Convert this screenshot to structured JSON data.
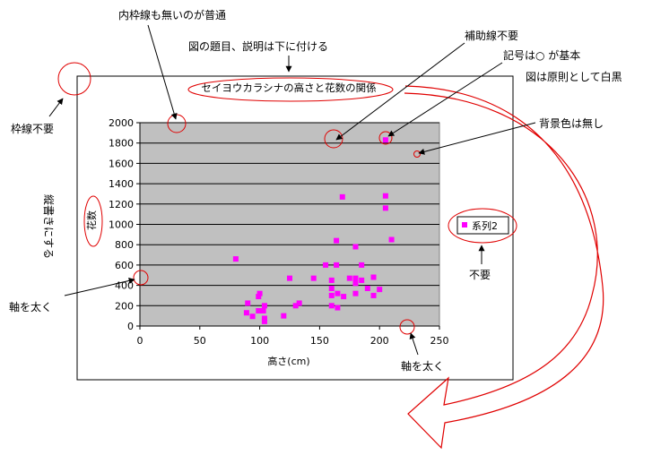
{
  "chart_data": {
    "type": "scatter",
    "title": "セイヨウカラシナの高さと花数の関係",
    "xlabel": "高さ(cm)",
    "ylabel": "花数",
    "xlim": [
      0,
      250
    ],
    "ylim": [
      0,
      2000
    ],
    "xticks": [
      0,
      50,
      100,
      150,
      200,
      250
    ],
    "yticks": [
      0,
      200,
      400,
      600,
      800,
      1000,
      1200,
      1400,
      1600,
      1800,
      2000
    ],
    "grid": "horizontal",
    "legend": "right",
    "series": [
      {
        "name": "系列2",
        "color": "#ff00ff",
        "marker": "square",
        "points": [
          [
            80,
            660
          ],
          [
            89,
            130
          ],
          [
            90,
            225
          ],
          [
            94,
            95
          ],
          [
            99,
            150
          ],
          [
            99,
            290
          ],
          [
            100,
            320
          ],
          [
            103,
            150
          ],
          [
            104,
            200
          ],
          [
            104,
            75
          ],
          [
            104,
            45
          ],
          [
            120,
            100
          ],
          [
            125,
            470
          ],
          [
            130,
            200
          ],
          [
            133,
            225
          ],
          [
            145,
            470
          ],
          [
            155,
            600
          ],
          [
            160,
            370
          ],
          [
            160,
            450
          ],
          [
            160,
            200
          ],
          [
            160,
            300
          ],
          [
            164,
            600
          ],
          [
            164,
            840
          ],
          [
            165,
            180
          ],
          [
            165,
            320
          ],
          [
            169,
            1270
          ],
          [
            170,
            290
          ],
          [
            175,
            470
          ],
          [
            180,
            420
          ],
          [
            180,
            320
          ],
          [
            180,
            780
          ],
          [
            180,
            470
          ],
          [
            185,
            600
          ],
          [
            185,
            450
          ],
          [
            190,
            370
          ],
          [
            195,
            300
          ],
          [
            195,
            480
          ],
          [
            200,
            360
          ],
          [
            205,
            1830
          ],
          [
            205,
            1280
          ],
          [
            205,
            1160
          ],
          [
            210,
            850
          ]
        ]
      }
    ]
  },
  "annotations": {
    "inner_frame": "内枠線も無いのが普通",
    "title_below": "図の題目、説明は下に付ける",
    "no_gridlines": "補助線不要",
    "marker": "記号は○ が基本",
    "monochrome": "図は原則として白黒",
    "no_outer_frame": "枠線不要",
    "no_background": "背景色は無し",
    "vertical_label": "縦書きにする",
    "unnecessary": "不要",
    "thick_y_axis": "軸を太く",
    "thick_x_axis": "軸を太く"
  },
  "colors": {
    "plot_background": "#c0c0c0",
    "marker": "#ff00ff",
    "annotation": "#ff0000"
  }
}
